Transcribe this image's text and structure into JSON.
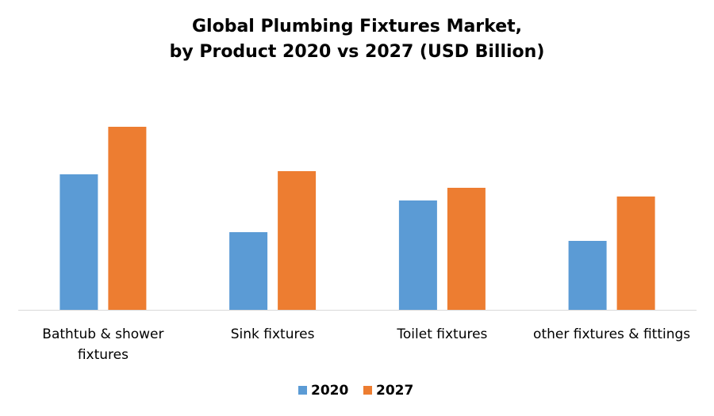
{
  "chart_data": {
    "type": "bar",
    "title_lines": [
      "Global Plumbing Fixtures Market,",
      "by Product 2020 vs 2027 (USD Billion)"
    ],
    "categories": [
      [
        "Bathtub & shower",
        "fixtures"
      ],
      [
        "Sink fixtures"
      ],
      [
        "Toilet fixtures"
      ],
      [
        "other fixtures & fittings"
      ]
    ],
    "series": [
      {
        "name": "2020",
        "color": "#5B9BD5",
        "values": [
          17.1,
          9.8,
          13.8,
          8.7
        ]
      },
      {
        "name": "2027",
        "color": "#ED7D31",
        "values": [
          23.1,
          17.5,
          15.4,
          14.3
        ]
      }
    ],
    "ylim": [
      0,
      30
    ],
    "grid": false,
    "legend_position": "bottom"
  }
}
